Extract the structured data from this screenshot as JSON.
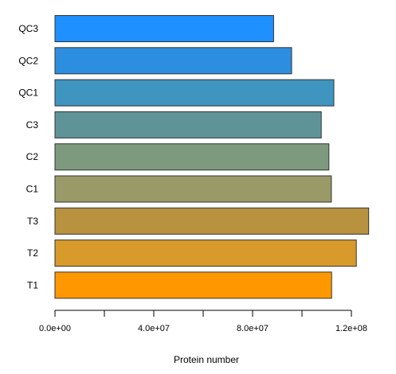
{
  "chart_data": {
    "type": "bar",
    "orientation": "horizontal",
    "categories": [
      "QC3",
      "QC2",
      "QC1",
      "C3",
      "C2",
      "C1",
      "T3",
      "T2",
      "T1"
    ],
    "values": [
      88500000,
      95800000,
      112900000,
      107800000,
      110900000,
      111900000,
      127000000,
      122000000,
      112000000
    ],
    "colors": [
      "#1e90ff",
      "#2d8ee0",
      "#3f94c0",
      "#5e9498",
      "#7d9a7e",
      "#9a9a68",
      "#b8923f",
      "#d99a2c",
      "#ff9800"
    ],
    "xlabel": "Protein number",
    "ylabel": "",
    "xlim": [
      0,
      127000000
    ],
    "x_ticks": [
      0,
      40000000,
      80000000,
      120000000
    ],
    "x_tick_labels": [
      "0.0e+00",
      "4.0e+07",
      "8.0e+07",
      "1.2e+08"
    ],
    "grid": false,
    "legend": "none"
  }
}
